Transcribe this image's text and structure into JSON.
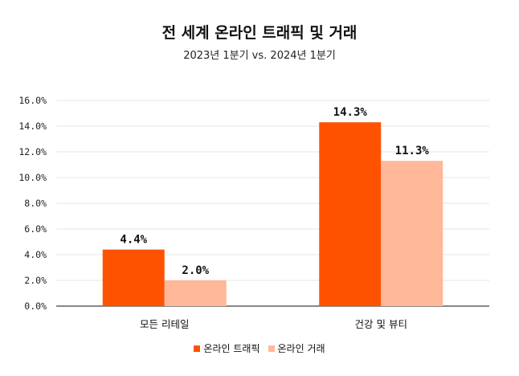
{
  "chart_data": {
    "type": "bar",
    "title": "전 세계 온라인 트래픽 및 거래",
    "subtitle": "2023년 1분기 vs. 2024년 1분기",
    "categories": [
      "모든 리테일",
      "건강 및 뷰티"
    ],
    "series": [
      {
        "name": "온라인 트래픽",
        "values": [
          4.4,
          14.3
        ],
        "labels": [
          "4.4%",
          "14.3%"
        ],
        "color": "#ff5200"
      },
      {
        "name": "온라인 거래",
        "values": [
          2.0,
          11.3
        ],
        "labels": [
          "2.0%",
          "11.3%"
        ],
        "color": "#ffb899"
      }
    ],
    "ylim": [
      0,
      16
    ],
    "yticks": [
      "0.0%",
      "2.0%",
      "4.0%",
      "6.0%",
      "8.0%",
      "10.0%",
      "12.0%",
      "14.0%",
      "16.0%"
    ],
    "grid": true,
    "legend_position": "bottom"
  }
}
